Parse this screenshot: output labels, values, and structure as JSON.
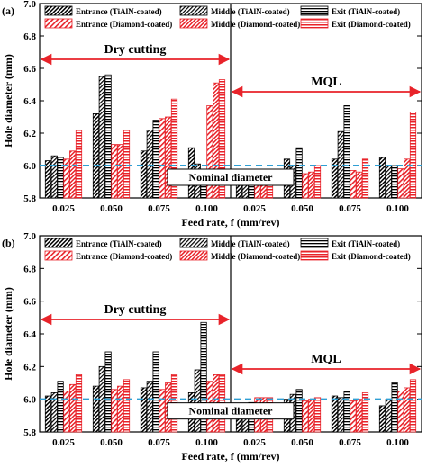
{
  "colors": {
    "tialn": "#000000",
    "diamond": "#e8232a",
    "nominal": "#2f9fd4",
    "arrow": "#e8232a"
  },
  "legend": [
    {
      "label": "Entrance (TiAlN-coated)",
      "pattern": "tialn-entrance"
    },
    {
      "label": "Middle (TiAlN-coated)",
      "pattern": "tialn-middle"
    },
    {
      "label": "Exit (TiAlN-coated)",
      "pattern": "tialn-exit"
    },
    {
      "label": "Entrance (Diamond-coated)",
      "pattern": "diamond-entrance"
    },
    {
      "label": "Middle (Diamond-coated)",
      "pattern": "diamond-middle"
    },
    {
      "label": "Exit (Diamond-coated)",
      "pattern": "diamond-exit"
    }
  ],
  "chart_data": [
    {
      "type": "bar",
      "panel_label": "(a)",
      "xlabel": "Feed rate, f (mm/rev)",
      "ylabel": "Hole diameter (mm)",
      "ylim": [
        5.8,
        7.0
      ],
      "yticks": [
        "5.8",
        "6.0",
        "6.2",
        "6.4",
        "6.6",
        "6.8",
        "7.0"
      ],
      "categories": [
        "0.025",
        "0.050",
        "0.075",
        "0.100",
        "0.025",
        "0.050",
        "0.075",
        "0.100"
      ],
      "nominal_value": 6.0,
      "nominal_label": "Nominal diameter",
      "regions": [
        {
          "label": "Dry cutting"
        },
        {
          "label": "MQL"
        }
      ],
      "series": [
        {
          "name": "Entrance (TiAlN-coated)",
          "values": [
            6.03,
            6.32,
            6.09,
            6.11,
            5.97,
            6.04,
            6.04,
            6.05
          ]
        },
        {
          "name": "Middle (TiAlN-coated)",
          "values": [
            6.06,
            6.55,
            6.22,
            6.01,
            5.97,
            6.0,
            6.21,
            6.0
          ]
        },
        {
          "name": "Exit (TiAlN-coated)",
          "values": [
            6.05,
            6.56,
            6.28,
            5.97,
            5.97,
            6.11,
            6.37,
            6.0
          ]
        },
        {
          "name": "Entrance (Diamond-coated)",
          "values": [
            6.04,
            6.13,
            6.29,
            6.37,
            5.96,
            5.95,
            5.97,
            5.98
          ]
        },
        {
          "name": "Middle (Diamond-coated)",
          "values": [
            6.09,
            6.13,
            6.3,
            6.51,
            5.96,
            5.96,
            5.96,
            6.04
          ]
        },
        {
          "name": "Exit (Diamond-coated)",
          "values": [
            6.22,
            6.22,
            6.41,
            6.53,
            5.97,
            6.0,
            6.04,
            6.33
          ]
        }
      ]
    },
    {
      "type": "bar",
      "panel_label": "(b)",
      "xlabel": "Feed rate, f (mm/rev)",
      "ylabel": "Hole diameter (mm)",
      "ylim": [
        5.8,
        7.0
      ],
      "yticks": [
        "5.8",
        "6.0",
        "6.2",
        "6.4",
        "6.6",
        "6.8",
        "7.0"
      ],
      "categories": [
        "0.025",
        "0.050",
        "0.075",
        "0.100",
        "0.025",
        "0.050",
        "0.075",
        "0.100"
      ],
      "nominal_value": 6.0,
      "nominal_label": "Nominal diameter",
      "regions": [
        {
          "label": "Dry cutting"
        },
        {
          "label": "MQL"
        }
      ],
      "series": [
        {
          "name": "Entrance (TiAlN-coated)",
          "values": [
            6.02,
            6.08,
            6.07,
            6.04,
            5.97,
            6.0,
            6.02,
            5.96
          ]
        },
        {
          "name": "Middle (TiAlN-coated)",
          "values": [
            6.04,
            6.2,
            6.11,
            6.18,
            5.97,
            6.03,
            6.01,
            6.0
          ]
        },
        {
          "name": "Exit (TiAlN-coated)",
          "values": [
            6.11,
            6.29,
            6.29,
            6.47,
            5.98,
            6.06,
            6.05,
            6.1
          ]
        },
        {
          "name": "Entrance (Diamond-coated)",
          "values": [
            6.05,
            6.06,
            6.06,
            6.11,
            6.01,
            5.99,
            5.99,
            6.05
          ]
        },
        {
          "name": "Middle (Diamond-coated)",
          "values": [
            6.09,
            6.08,
            6.1,
            6.15,
            6.01,
            6.0,
            6.0,
            6.07
          ]
        },
        {
          "name": "Exit (Diamond-coated)",
          "values": [
            6.15,
            6.12,
            6.15,
            6.15,
            6.01,
            6.01,
            6.04,
            6.12
          ]
        }
      ]
    }
  ]
}
